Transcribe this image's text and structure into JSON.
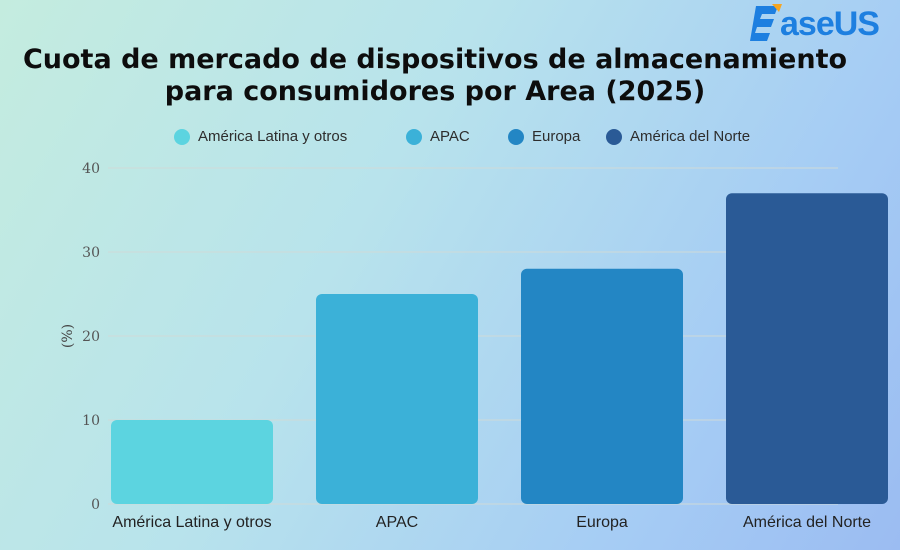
{
  "logo": {
    "text": "aseUS"
  },
  "colors": {
    "background_start": "#c4ecdf",
    "background_end": "#9bbcf2",
    "logo": "#1d7fe0",
    "grid": "#cfdad8"
  },
  "chart_data": {
    "type": "bar",
    "title_line1": "Cuota de mercado de dispositivos de almacenamiento",
    "title_line2": "para consumidores por Area (2025)",
    "xlabel": "",
    "ylabel": "(%)",
    "ylim": [
      0,
      40
    ],
    "yticks": [
      0,
      10,
      20,
      30,
      40
    ],
    "grid": true,
    "legend_placement": "top",
    "categories": [
      "América Latina y otros",
      "APAC",
      "Europa",
      "América del Norte"
    ],
    "values": [
      10,
      25,
      28,
      37
    ],
    "bar_colors": [
      "#5cd4e0",
      "#3bb1d8",
      "#2386c4",
      "#2a5a96"
    ],
    "legend": [
      {
        "label": "América Latina y otros",
        "color": "#5cd4e0"
      },
      {
        "label": "APAC",
        "color": "#3bb1d8"
      },
      {
        "label": "Europa",
        "color": "#2386c4"
      },
      {
        "label": "América del Norte",
        "color": "#2a5a96"
      }
    ]
  }
}
